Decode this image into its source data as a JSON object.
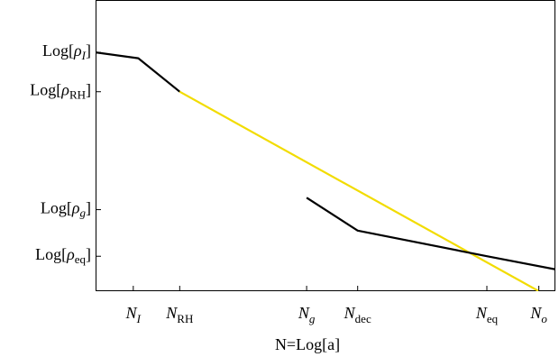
{
  "chart_data": {
    "type": "line",
    "title": "",
    "xlabel": "N=Log[a]",
    "ylabel": "",
    "grid": false,
    "legend": "none",
    "xlim": [
      0,
      1
    ],
    "ylim": [
      0,
      1
    ],
    "x_ticks": [
      {
        "label": "N_I",
        "base": "N",
        "sub": "I",
        "sub_italic": true,
        "x": 0.082
      },
      {
        "label": "N_RH",
        "base": "N",
        "sub": "RH",
        "sub_italic": false,
        "x": 0.183
      },
      {
        "label": "N_g",
        "base": "N",
        "sub": "g",
        "sub_italic": true,
        "x": 0.459
      },
      {
        "label": "N_dec",
        "base": "N",
        "sub": "dec",
        "sub_italic": false,
        "x": 0.57
      },
      {
        "label": "N_eq",
        "base": "N",
        "sub": "eq",
        "sub_italic": false,
        "x": 0.851
      },
      {
        "label": "N_o",
        "base": "N",
        "sub": "o",
        "sub_italic": true,
        "x": 0.964
      }
    ],
    "y_ticks": [
      {
        "label": "Log[ρ_I]",
        "sub": "I",
        "sub_italic": true,
        "y": 0.82
      },
      {
        "label": "Log[ρ_RH]",
        "sub": "RH",
        "sub_italic": false,
        "y": 0.685
      },
      {
        "label": "Log[ρ_g]",
        "sub": "g",
        "sub_italic": true,
        "y": 0.28
      },
      {
        "label": "Log[ρ_eq]",
        "sub": "eq",
        "sub_italic": false,
        "y": 0.12
      }
    ],
    "series": [
      {
        "color": "#000000",
        "points": [
          [
            0,
            0.82
          ],
          [
            0.093,
            0.8
          ],
          [
            0.183,
            0.685
          ]
        ]
      },
      {
        "color": "#f2dc00",
        "points": [
          [
            0.183,
            0.685
          ],
          [
            0.964,
            0.0
          ]
        ]
      },
      {
        "color": "#000000",
        "points": [
          [
            0.459,
            0.321
          ],
          [
            0.57,
            0.208
          ],
          [
            0.851,
            0.12
          ],
          [
            1.0,
            0.075
          ]
        ]
      }
    ]
  }
}
